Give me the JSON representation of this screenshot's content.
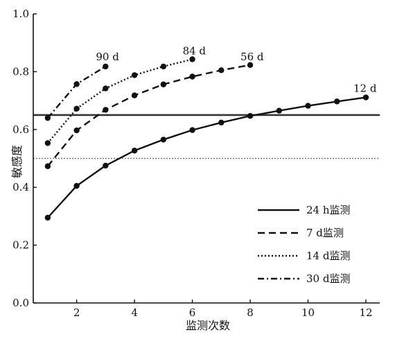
{
  "chart_data": {
    "type": "line",
    "xlabel": "监测次数",
    "ylabel": "敏感度",
    "xlim": [
      0.5,
      12.1
    ],
    "ylim": [
      0,
      1.0
    ],
    "xticks": [
      2,
      4,
      6,
      8,
      10,
      12
    ],
    "yticks": [
      0.0,
      0.2,
      0.4,
      0.6,
      0.8,
      1.0
    ],
    "ytick_labels": [
      "0.0",
      "0.2",
      "0.4",
      "0.6",
      "0.8",
      "1.0"
    ],
    "reference_lines": [
      {
        "y": 0.65,
        "style": "solid"
      },
      {
        "y": 0.5,
        "style": "dotted"
      }
    ],
    "legend_position": "lower-right",
    "series": [
      {
        "name": "24 h监测",
        "style": "solid",
        "end_label": "12 d",
        "x": [
          1,
          2,
          3,
          4,
          5,
          6,
          7,
          8,
          9,
          10,
          11,
          12
        ],
        "y": [
          0.295,
          0.405,
          0.475,
          0.527,
          0.565,
          0.598,
          0.624,
          0.647,
          0.665,
          0.682,
          0.697,
          0.711
        ]
      },
      {
        "name": "7 d监测",
        "style": "dashed",
        "end_label": "56 d",
        "x": [
          1,
          2,
          3,
          4,
          5,
          6,
          7,
          8
        ],
        "y": [
          0.473,
          0.597,
          0.668,
          0.718,
          0.756,
          0.783,
          0.805,
          0.823
        ]
      },
      {
        "name": "14 d监测",
        "style": "dotted",
        "end_label": "84 d",
        "x": [
          1,
          2,
          3,
          4,
          5,
          6
        ],
        "y": [
          0.553,
          0.672,
          0.742,
          0.788,
          0.818,
          0.843
        ]
      },
      {
        "name": "30 d监测",
        "style": "dashdot",
        "end_label": "90 d",
        "x": [
          1,
          2,
          3
        ],
        "y": [
          0.64,
          0.757,
          0.818
        ]
      }
    ]
  }
}
